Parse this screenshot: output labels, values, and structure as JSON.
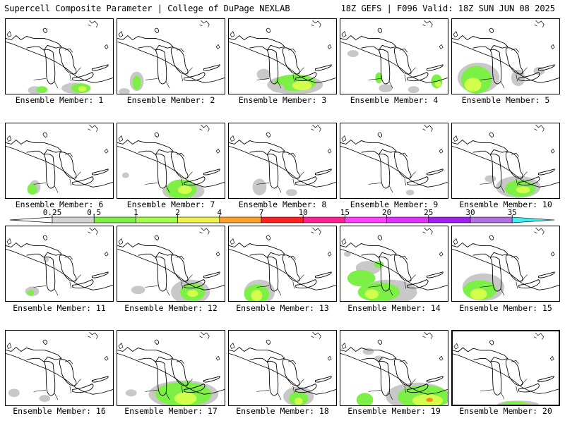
{
  "header": {
    "title": "Supercell Composite Parameter | College of DuPage NEXLAB",
    "run_info": "18Z GEFS | F096 Valid: 18Z SUN JUN 08 2025"
  },
  "panels": [
    {
      "label": "Ensemble Member: 1",
      "blobs": [
        [
          "#c8c8c8",
          42,
          103,
          10,
          6
        ],
        [
          "#7cf044",
          52,
          102,
          8,
          5
        ],
        [
          "#c8c8c8",
          100,
          100,
          20,
          8
        ],
        [
          "#7cf044",
          108,
          100,
          14,
          7
        ],
        [
          "#d2ff4c",
          110,
          101,
          6,
          4
        ]
      ]
    },
    {
      "label": "Ensemble Member: 2",
      "blobs": [
        [
          "#c8c8c8",
          28,
          90,
          10,
          14
        ],
        [
          "#7cf044",
          28,
          92,
          6,
          10
        ],
        [
          "#c8c8c8",
          10,
          105,
          8,
          5
        ]
      ]
    },
    {
      "label": "Ensemble Member: 3",
      "blobs": [
        [
          "#c8c8c8",
          50,
          80,
          10,
          8
        ],
        [
          "#c8c8c8",
          95,
          95,
          40,
          14
        ],
        [
          "#7cf044",
          95,
          92,
          30,
          12
        ],
        [
          "#d2ff4c",
          105,
          96,
          14,
          7
        ],
        [
          "#c8c8c8",
          70,
          100,
          10,
          6
        ]
      ]
    },
    {
      "label": "Ensemble Member: 4",
      "blobs": [
        [
          "#c8c8c8",
          18,
          50,
          8,
          5
        ],
        [
          "#7cf044",
          55,
          85,
          5,
          8
        ],
        [
          "#c8c8c8",
          65,
          100,
          10,
          6
        ],
        [
          "#7cf044",
          138,
          90,
          8,
          10
        ],
        [
          "#d2ff4c",
          140,
          94,
          4,
          4
        ],
        [
          "#c8c8c8",
          105,
          102,
          8,
          5
        ]
      ]
    },
    {
      "label": "Ensemble Member: 5",
      "blobs": [
        [
          "#c8c8c8",
          38,
          85,
          30,
          22
        ],
        [
          "#7cf044",
          35,
          88,
          22,
          20
        ],
        [
          "#d2ff4c",
          30,
          95,
          12,
          10
        ],
        [
          "#c8c8c8",
          95,
          85,
          10,
          12
        ],
        [
          "#c8c8c8",
          125,
          75,
          8,
          6
        ]
      ]
    },
    {
      "label": "Ensemble Member: 6",
      "blobs": [
        [
          "#c8c8c8",
          42,
          92,
          8,
          10
        ],
        [
          "#7cf044",
          38,
          95,
          7,
          8
        ]
      ]
    },
    {
      "label": "Ensemble Member: 7",
      "blobs": [
        [
          "#c8c8c8",
          95,
          98,
          30,
          14
        ],
        [
          "#7cf044",
          92,
          95,
          22,
          14
        ],
        [
          "#d2ff4c",
          97,
          96,
          10,
          6
        ],
        [
          "#c8c8c8",
          12,
          75,
          5,
          4
        ]
      ]
    },
    {
      "label": "Ensemble Member: 8",
      "blobs": [
        [
          "#c8c8c8",
          44,
          92,
          10,
          12
        ],
        [
          "#c8c8c8",
          90,
          100,
          8,
          5
        ]
      ]
    },
    {
      "label": "Ensemble Member: 9",
      "blobs": [
        [
          "#c8c8c8",
          100,
          100,
          6,
          4
        ]
      ]
    },
    {
      "label": "Ensemble Member: 10",
      "blobs": [
        [
          "#c8c8c8",
          95,
          92,
          32,
          16
        ],
        [
          "#7cf044",
          98,
          94,
          22,
          12
        ],
        [
          "#d2ff4c",
          102,
          96,
          10,
          5
        ],
        [
          "#c8c8c8",
          55,
          80,
          8,
          5
        ]
      ]
    },
    {
      "label": "Ensemble Member: 11",
      "blobs": [
        [
          "#c8c8c8",
          38,
          94,
          10,
          7
        ],
        [
          "#7cf044",
          36,
          96,
          5,
          4
        ],
        [
          "#c8c8c8",
          58,
          48,
          4,
          4
        ]
      ]
    },
    {
      "label": "Ensemble Member: 12",
      "blobs": [
        [
          "#c8c8c8",
          105,
          95,
          28,
          18
        ],
        [
          "#7cf044",
          108,
          95,
          18,
          13
        ],
        [
          "#d2ff4c",
          108,
          97,
          8,
          5
        ],
        [
          "#c8c8c8",
          30,
          92,
          10,
          6
        ]
      ]
    },
    {
      "label": "Ensemble Member: 13",
      "blobs": [
        [
          "#c8c8c8",
          44,
          95,
          22,
          18
        ],
        [
          "#7cf044",
          40,
          98,
          18,
          14
        ],
        [
          "#d2ff4c",
          40,
          100,
          8,
          8
        ]
      ]
    },
    {
      "label": "Ensemble Member: 14",
      "blobs": [
        [
          "#c8c8c8",
          40,
          60,
          18,
          10
        ],
        [
          "#7cf044",
          30,
          75,
          20,
          12
        ],
        [
          "#c8c8c8",
          70,
          95,
          40,
          18
        ],
        [
          "#7cf044",
          55,
          95,
          30,
          14
        ],
        [
          "#d2ff4c",
          45,
          98,
          10,
          7
        ],
        [
          "#7cf044",
          55,
          55,
          7,
          5
        ],
        [
          "#c8c8c8",
          10,
          40,
          5,
          4
        ]
      ]
    },
    {
      "label": "Ensemble Member: 15",
      "blobs": [
        [
          "#c8c8c8",
          45,
          88,
          30,
          20
        ],
        [
          "#7cf044",
          40,
          92,
          24,
          14
        ],
        [
          "#d2ff4c",
          38,
          98,
          12,
          8
        ]
      ]
    },
    {
      "label": "Ensemble Member: 16",
      "blobs": [
        [
          "#c8c8c8",
          12,
          90,
          8,
          6
        ],
        [
          "#c8c8c8",
          56,
          98,
          8,
          5
        ]
      ]
    },
    {
      "label": "Ensemble Member: 17",
      "blobs": [
        [
          "#c8c8c8",
          95,
          92,
          50,
          20
        ],
        [
          "#7cf044",
          95,
          92,
          40,
          18
        ],
        [
          "#d2ff4c",
          98,
          98,
          16,
          9
        ],
        [
          "#c8c8c8",
          20,
          90,
          8,
          5
        ]
      ]
    },
    {
      "label": "Ensemble Member: 18",
      "blobs": [
        [
          "#c8c8c8",
          100,
          95,
          22,
          14
        ],
        [
          "#7cf044",
          100,
          98,
          14,
          10
        ],
        [
          "#d2ff4c",
          100,
          102,
          6,
          5
        ]
      ]
    },
    {
      "label": "Ensemble Member: 19",
      "blobs": [
        [
          "#c8c8c8",
          110,
          95,
          45,
          20
        ],
        [
          "#7cf044",
          120,
          96,
          38,
          17
        ],
        [
          "#d2ff4c",
          125,
          101,
          22,
          9
        ],
        [
          "#ff8a1c",
          128,
          100,
          5,
          3
        ],
        [
          "#7cf044",
          35,
          100,
          12,
          10
        ],
        [
          "#c8c8c8",
          40,
          30,
          8,
          5
        ],
        [
          "#c8c8c8",
          55,
          40,
          6,
          4
        ]
      ]
    },
    {
      "label": "Ensemble Member: 20",
      "blobs": [
        [
          "#c8c8c8",
          95,
          108,
          30,
          6
        ],
        [
          "#7cf044",
          90,
          108,
          20,
          5
        ]
      ]
    }
  ],
  "legend": {
    "ticks": [
      "0.25",
      "0.5",
      "1",
      "2",
      "4",
      "7",
      "10",
      "15",
      "20",
      "25",
      "30",
      "35"
    ],
    "colors": [
      "#d2d2d2",
      "#7cf044",
      "#a0ff48",
      "#f0f04c",
      "#ffa028",
      "#ff2020",
      "#ff2090",
      "#ff40ff",
      "#e030ff",
      "#a020f0",
      "#b070e0",
      "#40f0f0"
    ]
  }
}
